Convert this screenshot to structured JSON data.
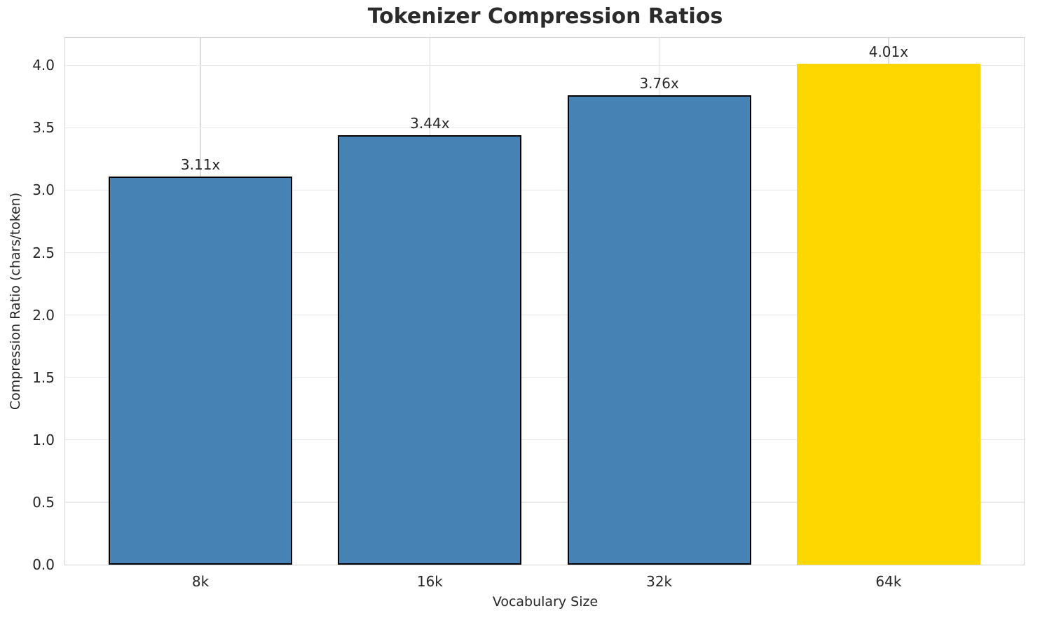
{
  "chart_data": {
    "type": "bar",
    "title": "Tokenizer Compression Ratios",
    "xlabel": "Vocabulary Size",
    "ylabel": "Compression Ratio (chars/token)",
    "categories": [
      "8k",
      "16k",
      "32k",
      "64k"
    ],
    "values": [
      3.11,
      3.44,
      3.76,
      4.01
    ],
    "bar_labels": [
      "3.11x",
      "3.44x",
      "3.76x",
      "4.01x"
    ],
    "bar_colors": [
      "#4682B4",
      "#4682B4",
      "#4682B4",
      "#FFD700"
    ],
    "bar_edge_colors": [
      "#000000",
      "#000000",
      "#000000",
      "none"
    ],
    "yticks": [
      0.0,
      0.5,
      1.0,
      1.5,
      2.0,
      2.5,
      3.0,
      3.5,
      4.0
    ],
    "ytick_labels": [
      "0.0",
      "0.5",
      "1.0",
      "1.5",
      "2.0",
      "2.5",
      "3.0",
      "3.5",
      "4.0"
    ],
    "ylim": [
      0,
      4.22
    ],
    "x_axis_span_units": 4.18,
    "first_bar_center_units": 0.59,
    "bar_width_units": 0.8,
    "grid": true,
    "legend_position": "none"
  },
  "style": {
    "bar_fill_default": "#4682B4",
    "bar_fill_highlight": "#FFD700",
    "bar_edge_color": "#000000",
    "grid_color_horizontal": "#ebebeb",
    "grid_color_vertical": "#dcdcdc",
    "spine_color": "#d4d4d4",
    "text_color": "#262626",
    "title_color": "#2b2b2b",
    "background": "#ffffff"
  }
}
